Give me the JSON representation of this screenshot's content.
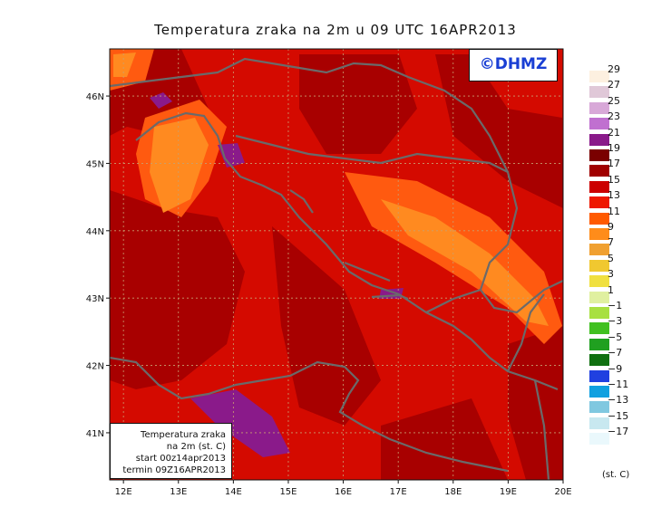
{
  "title": "Temperatura zraka na 2m u 09 UTC 16APR2013",
  "logo_text": "©DHMZ",
  "info_box": {
    "line1": "Temperatura zraka",
    "line2": "na 2m (st. C)",
    "line3": "start 00z14apr2013",
    "line4": "termin 09Z16APR2013"
  },
  "x_axis": {
    "ticks": [
      "12E",
      "13E",
      "14E",
      "15E",
      "16E",
      "17E",
      "18E",
      "19E",
      "20E"
    ],
    "range": [
      11.75,
      20.0
    ]
  },
  "y_axis": {
    "ticks": [
      "46N",
      "45N",
      "44N",
      "43N",
      "42N",
      "41N"
    ],
    "values": [
      46,
      45,
      44,
      43,
      42,
      41
    ],
    "range": [
      40.3,
      46.7
    ]
  },
  "legend": {
    "unit": "(st. C)",
    "items": [
      {
        "label": "29",
        "color": "#fdf0e0"
      },
      {
        "label": "27",
        "color": "#e0c8d8"
      },
      {
        "label": "25",
        "color": "#d8a8d8"
      },
      {
        "label": "23",
        "color": "#c070d0"
      },
      {
        "label": "21",
        "color": "#8a1a8a"
      },
      {
        "label": "19",
        "color": "#7a0000"
      },
      {
        "label": "17",
        "color": "#a00000"
      },
      {
        "label": "15",
        "color": "#cc0000"
      },
      {
        "label": "13",
        "color": "#ee1800"
      },
      {
        "label": "11",
        "color": "#ff5a00"
      },
      {
        "label": "9",
        "color": "#ff8c1a"
      },
      {
        "label": "7",
        "color": "#f0a030"
      },
      {
        "label": "5",
        "color": "#f0c830"
      },
      {
        "label": "3",
        "color": "#f0e040"
      },
      {
        "label": "1",
        "color": "#e0f0a0"
      },
      {
        "label": "−1",
        "color": "#a8e040"
      },
      {
        "label": "−3",
        "color": "#40c020"
      },
      {
        "label": "−5",
        "color": "#20a020"
      },
      {
        "label": "−7",
        "color": "#107010"
      },
      {
        "label": "−9",
        "color": "#2040e0"
      },
      {
        "label": "−11",
        "color": "#10a0e0"
      },
      {
        "label": "−13",
        "color": "#80c8e0"
      },
      {
        "label": "−15",
        "color": "#c8e8f0"
      },
      {
        "label": "−17",
        "color": "#eaf8fc"
      }
    ]
  },
  "colors": {
    "field_base": "#d40a00",
    "field_dark": "#a80000",
    "field_warm": "#ff5a10",
    "field_orange": "#ff8a20",
    "field_purple": "#8a1a8a",
    "coast": "#6a6a6a",
    "grid": "#c8a070"
  }
}
